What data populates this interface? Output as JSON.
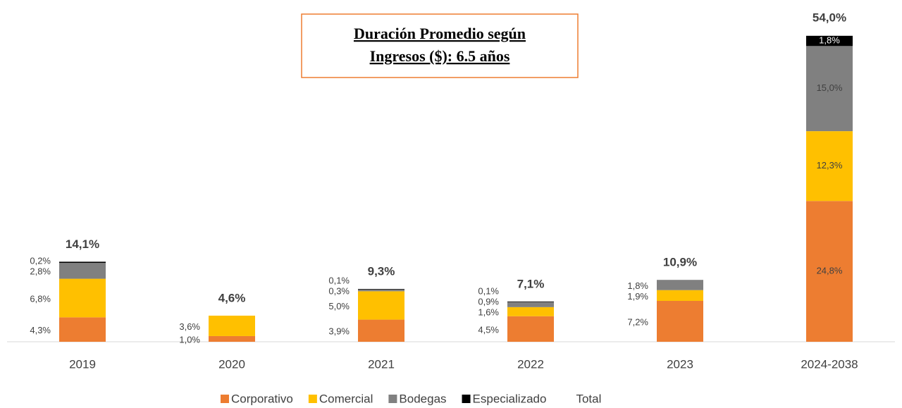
{
  "chart_data": {
    "type": "stacked_bar",
    "title": [
      "Duración Promedio según",
      "Ingresos ($): 6.5 años"
    ],
    "categories": [
      "2019",
      "2020",
      "2021",
      "2022",
      "2023",
      "2024-2038"
    ],
    "series": [
      {
        "name": "Corporativo",
        "color": "#ed7d31",
        "values": [
          4.3,
          1.0,
          3.9,
          4.5,
          7.2,
          24.8
        ],
        "value_labels": [
          "4,3%",
          "1,0%",
          "3,9%",
          "4,5%",
          "7,2%",
          "24,8%"
        ]
      },
      {
        "name": "Comercial",
        "color": "#ffc000",
        "values": [
          6.8,
          3.6,
          5.0,
          1.6,
          1.9,
          12.3
        ],
        "value_labels": [
          "6,8%",
          "3,6%",
          "5,0%",
          "1,6%",
          "1,9%",
          "12,3%"
        ]
      },
      {
        "name": "Bodegas",
        "color": "#808080",
        "values": [
          2.8,
          null,
          0.3,
          0.9,
          1.8,
          15.0
        ],
        "value_labels": [
          "2,8%",
          null,
          "0,3%",
          "0,9%",
          "1,8%",
          "15,0%"
        ]
      },
      {
        "name": "Especializado",
        "color": "#000000",
        "values": [
          0.2,
          null,
          0.1,
          0.1,
          null,
          1.8
        ],
        "value_labels": [
          "0,2%",
          null,
          "0,1%",
          "0,1%",
          null,
          "1,8%"
        ]
      }
    ],
    "totals": {
      "name": "Total",
      "values": [
        14.1,
        4.6,
        9.3,
        7.1,
        10.9,
        54.0
      ],
      "value_labels": [
        "14,1%",
        "4,6%",
        "9,3%",
        "7,1%",
        "10,9%",
        "54,0%"
      ]
    },
    "ylim": [
      0,
      54
    ]
  }
}
